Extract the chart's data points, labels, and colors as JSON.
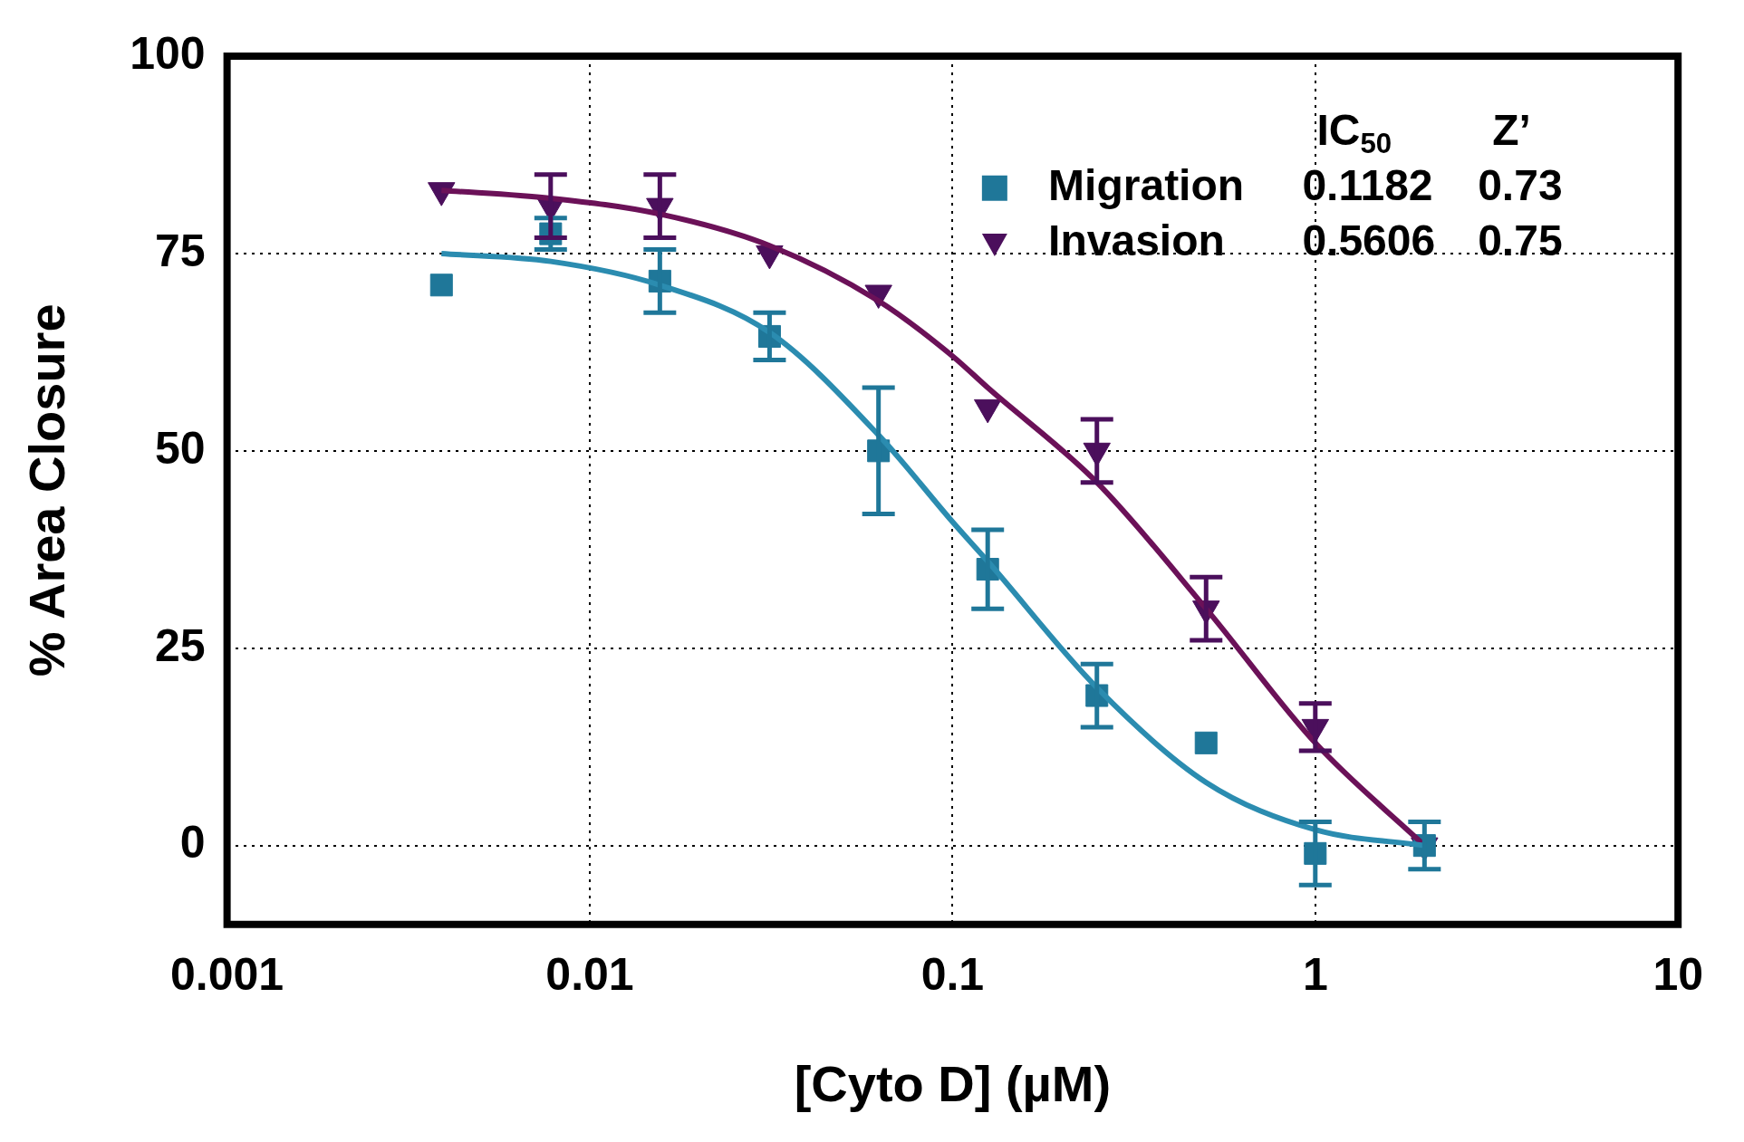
{
  "chart_data": {
    "type": "scatter",
    "xlabel": "[Cyto D] (µM)",
    "ylabel": "% Area Closure",
    "log": "x",
    "xlim": [
      0.001,
      10
    ],
    "xticks": [
      0.001,
      0.01,
      0.1,
      1,
      10
    ],
    "ylim": [
      -10,
      100
    ],
    "yticks": [
      0,
      25,
      50,
      75,
      100
    ],
    "grid": true,
    "legend": "top right",
    "annotations": [
      "IC$_{50}$",
      "Z’",
      "0.1182",
      "0.73",
      "0.5606",
      "0.75"
    ],
    "series": [
      {
        "name": "Migration",
        "marker": "square",
        "color": "#1f7799",
        "x": [
          0.0039,
          0.0078,
          0.0156,
          0.0313,
          0.0625,
          0.125,
          0.25,
          0.5,
          1,
          2
        ],
        "values": [
          71,
          77.5,
          71.5,
          64.5,
          50,
          35,
          19,
          13,
          -1,
          0
        ],
        "errors": [
          null,
          2,
          4,
          3,
          8,
          5,
          4,
          null,
          4,
          3
        ]
      },
      {
        "name": "Invasion",
        "marker": "triangle",
        "color": "#4b0f5c",
        "x": [
          0.0039,
          0.0078,
          0.0156,
          0.0313,
          0.0625,
          0.125,
          0.25,
          0.5,
          1,
          2
        ],
        "values": [
          83,
          81,
          81,
          75,
          70,
          55.5,
          50,
          30,
          15,
          0
        ],
        "errors": [
          null,
          4,
          4,
          null,
          null,
          null,
          4,
          4,
          3,
          null
        ]
      },
      {
        "type": "line",
        "marker": "none",
        "color": "#2b8cb0",
        "x": [
          0.0039,
          0.0078,
          0.0156,
          0.0313,
          0.0625,
          0.1,
          0.125,
          0.25,
          0.5,
          1,
          2
        ],
        "values": [
          75,
          74,
          71,
          65,
          52,
          41,
          36,
          20,
          8,
          2,
          0
        ]
      },
      {
        "type": "line",
        "marker": "none",
        "color": "#6b1158",
        "x": [
          0.0039,
          0.0078,
          0.0156,
          0.0313,
          0.0625,
          0.1,
          0.125,
          0.25,
          0.5,
          1,
          2
        ],
        "values": [
          83,
          82,
          80,
          76,
          69,
          62,
          58,
          46,
          30,
          13,
          0
        ]
      }
    ]
  }
}
